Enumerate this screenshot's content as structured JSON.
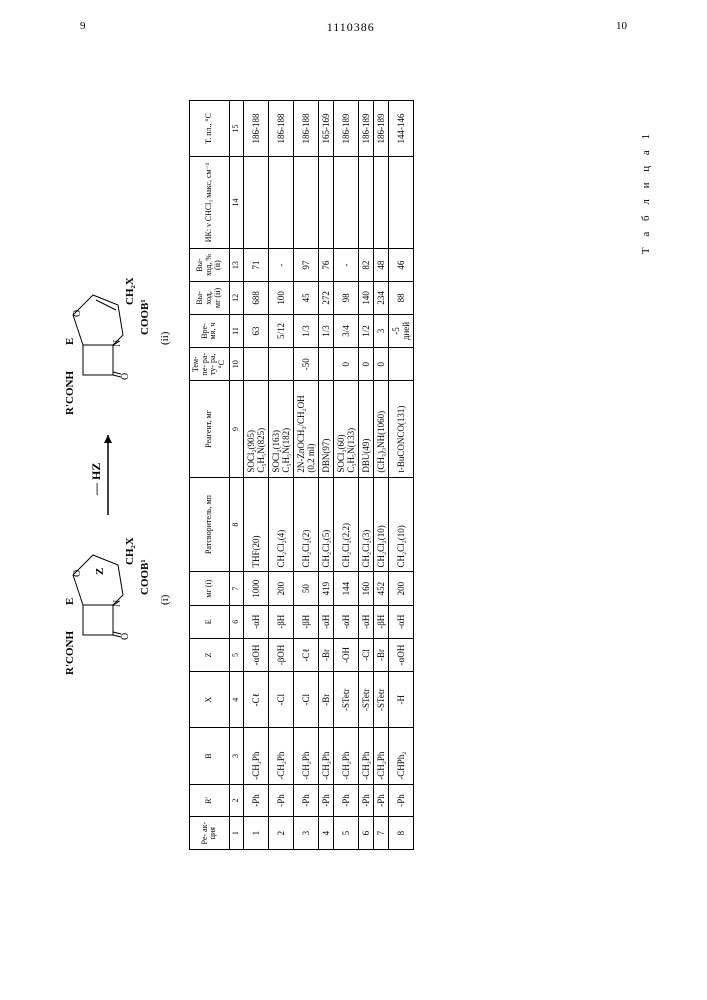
{
  "page": {
    "left_num": "9",
    "center_num": "1110386",
    "right_num": "10"
  },
  "table_label": "Т а б л и ц а 1",
  "scheme": {
    "compound_i": "(i)",
    "compound_ii": "(ii)",
    "arrow_label": "— HZ",
    "labels": {
      "rconh": "R'CONH",
      "e": "E",
      "z": "Z",
      "o": "O",
      "n": "N",
      "ch2x": "CH₂X",
      "coob1": "COOB¹"
    }
  },
  "columns": [
    {
      "n": "1",
      "label": "Ре-\nак-\nция"
    },
    {
      "n": "2",
      "label": "R'"
    },
    {
      "n": "3",
      "label": "B"
    },
    {
      "n": "4",
      "label": "X"
    },
    {
      "n": "5",
      "label": "Z"
    },
    {
      "n": "6",
      "label": "E"
    },
    {
      "n": "7",
      "label": "мг\n(i)"
    },
    {
      "n": "8",
      "label": "Ратсворитель,\nмп"
    },
    {
      "n": "9",
      "label": "Реагент, мг"
    },
    {
      "n": "10",
      "label": "Тем-\nпе-\nра-\nту-\nра,\n°С"
    },
    {
      "n": "11",
      "label": "Вре-\nмя, ч"
    },
    {
      "n": "12",
      "label": "Вы-\nход,\nмг\n(ii)"
    },
    {
      "n": "13",
      "label": "Вы-\nход,\n%\n(ii)"
    },
    {
      "n": "14",
      "label": "ИК: ν CHCl₃ макс, см⁻¹"
    },
    {
      "n": "15",
      "label": "Т. пл., °С"
    }
  ],
  "rows": [
    {
      "n": "1",
      "r": "-Ph",
      "b": "-CH₂Ph",
      "x": "-Cℓ",
      "z": "-αOH",
      "e": "-αH",
      "mg": "1000",
      "solv": "THF(20)",
      "reag": "SOCl₂(905)\nC₅H₅N(825)",
      "temp": "",
      "time": "63",
      "yield_mg": "688",
      "yield_pct": "71",
      "ir": "",
      "mp": "186-188"
    },
    {
      "n": "2",
      "r": "-Ph",
      "b": "-CH₂Ph",
      "x": "-Cl",
      "z": "-βOH",
      "e": "-βH",
      "mg": "200",
      "solv": "CH₂Cl₂(4)",
      "reag": "SOCl₂(163)\nC₅H₅N(182)",
      "temp": "",
      "time": "5/12",
      "yield_mg": "100",
      "yield_pct": "-",
      "ir": "",
      "mp": "186-188"
    },
    {
      "n": "3",
      "r": "-Ph",
      "b": "-CH₂Ph",
      "x": "-Cl",
      "z": "-Cℓ",
      "e": "-βH",
      "mg": "50",
      "solv": "CH₂Cl₂(2)",
      "reag": "2N-ZnOCH₃/CH₂OH\n(0,2 ml)",
      "temp": "-50",
      "time": "1/3",
      "yield_mg": "45",
      "yield_pct": "97",
      "ir": "",
      "mp": "186-188"
    },
    {
      "n": "4",
      "r": "-Ph",
      "b": "-CH₂Ph",
      "x": "-Br",
      "z": "-Br",
      "e": "-αH",
      "mg": "419",
      "solv": "CH₂Cl₂(5)",
      "reag": "DBN(97)",
      "temp": "",
      "time": "1/3",
      "yield_mg": "272",
      "yield_pct": "76",
      "ir": "",
      "mp": "165-169"
    },
    {
      "n": "5",
      "r": "-Ph",
      "b": "-CH₂Ph",
      "x": "-STetr",
      "z": "-OH",
      "e": "-αH",
      "mg": "144",
      "solv": "CH₂Cl₂(2,2)",
      "reag": "SOCl₂(60)\nC₅H₅N(133)",
      "temp": "0",
      "time": "3/4",
      "yield_mg": "98",
      "yield_pct": "-",
      "ir": "",
      "mp": "186-189"
    },
    {
      "n": "6",
      "r": "-Ph",
      "b": "-CH₂Ph",
      "x": "-STetr",
      "z": "-Cl",
      "e": "-αH",
      "mg": "160",
      "solv": "CH₂Cl₂(3)",
      "reag": "DBU(49)",
      "temp": "0",
      "time": "1/2",
      "yield_mg": "140",
      "yield_pct": "82",
      "ir": "",
      "mp": "186-189"
    },
    {
      "n": "7",
      "r": "-Ph",
      "b": "-CH₂Ph",
      "x": "-STetr",
      "z": "-Br",
      "e": "-βH",
      "mg": "452",
      "solv": "CH₂Cl₂(10)",
      "reag": "(CH₃)₃NH(1060)",
      "temp": "0",
      "time": "3",
      "yield_mg": "234",
      "yield_pct": "48",
      "ir": "",
      "mp": "186-189"
    },
    {
      "n": "8",
      "r": "-Ph",
      "b": "-CHPh₂",
      "x": "-H",
      "z": "-αOH",
      "e": "-αH",
      "mg": "200",
      "solv": "CH₂Cl₂(10)",
      "reag": "t-BuCONCO(131)",
      "temp": "",
      "time": "-5 дней",
      "yield_mg": "88",
      "yield_pct": "46",
      "ir": "",
      "mp": "144-146"
    }
  ],
  "style": {
    "bg": "#ffffff",
    "fg": "#000000",
    "table_border": "#000000",
    "font_body": 10,
    "font_table": 9,
    "font_header": 8
  }
}
